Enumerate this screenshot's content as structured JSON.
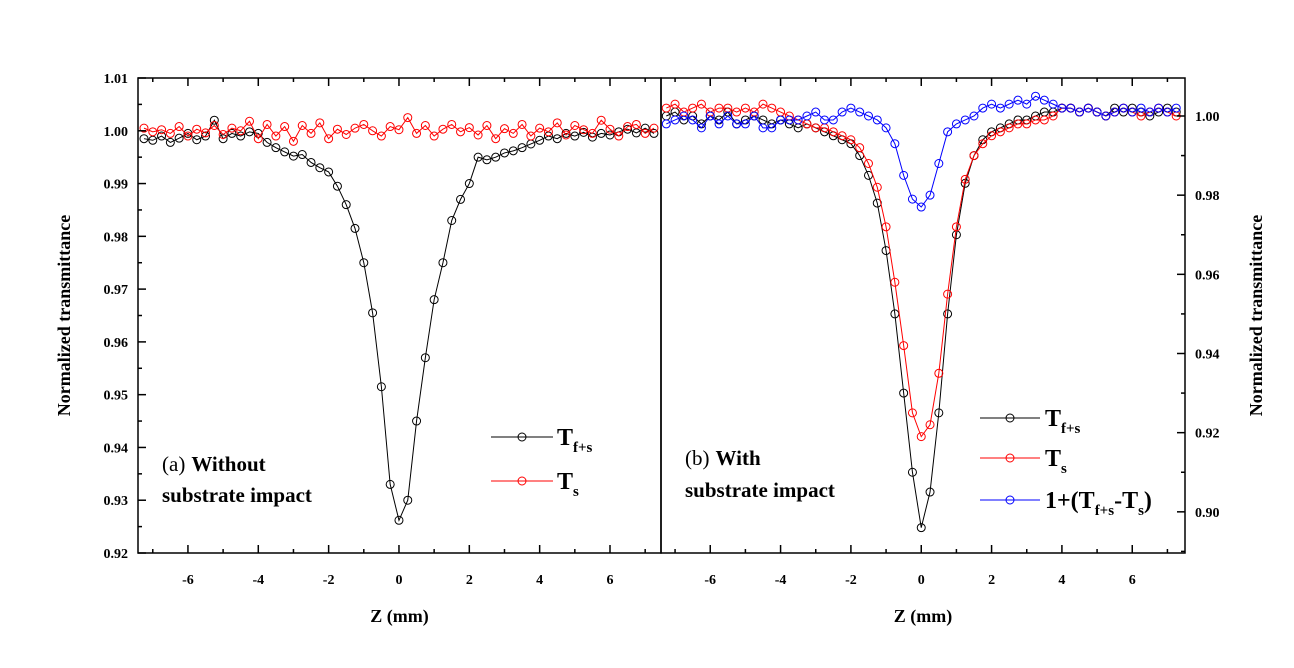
{
  "chart_data": [
    {
      "type": "line",
      "panel": "a",
      "xlabel": "Z (mm)",
      "ylabel": "Normalized transmittance",
      "xlim": [
        -7.42,
        7.45
      ],
      "ylim": [
        0.92,
        1.01
      ],
      "xticks": [
        -6,
        -4,
        -2,
        0,
        2,
        4,
        6
      ],
      "xtick_labels": [
        "-6",
        "-4",
        "-2",
        "0",
        "2",
        "4",
        "6"
      ],
      "yticks": [
        0.92,
        0.93,
        0.94,
        0.95,
        0.96,
        0.97,
        0.98,
        0.99,
        1.0,
        1.01
      ],
      "ytick_labels": [
        "0.92",
        "0.93",
        "0.94",
        "0.95",
        "0.96",
        "0.97",
        "0.98",
        "0.99",
        "1.00",
        "1.01"
      ],
      "y_axis_side": "left",
      "annotation": [
        "(a)",
        "Without",
        "substrate impact"
      ],
      "legend_placement": "lower-right",
      "x_start": -7.25,
      "x_step": 0.25,
      "series": [
        {
          "name": "Tf+s",
          "label_parts": [
            "T",
            "f+s"
          ],
          "color": "#000000",
          "values": [
            0.9985,
            0.9982,
            0.999,
            0.9978,
            0.9986,
            0.9995,
            0.9983,
            0.999,
            1.002,
            0.9985,
            0.9995,
            0.999,
            0.9998,
            0.9995,
            0.9978,
            0.9968,
            0.996,
            0.9952,
            0.9955,
            0.994,
            0.993,
            0.9922,
            0.9895,
            0.986,
            0.9815,
            0.975,
            0.9655,
            0.9515,
            0.933,
            0.9262,
            0.93,
            0.945,
            0.957,
            0.968,
            0.975,
            0.983,
            0.987,
            0.99,
            0.995,
            0.9945,
            0.995,
            0.9958,
            0.9962,
            0.9968,
            0.9975,
            0.9982,
            0.999,
            0.9985,
            0.9995,
            0.999,
            0.9997,
            0.9988,
            0.9995,
            0.9992,
            0.9998,
            1.0003,
            0.9996,
            1.0005,
            0.9995
          ]
        },
        {
          "name": "Ts",
          "label_parts": [
            "T",
            "s"
          ],
          "color": "#ff0000",
          "values": [
            1.0005,
            0.9998,
            1.0002,
            0.9995,
            1.0008,
            0.999,
            1.0003,
            0.9996,
            1.001,
            0.9993,
            1.0005,
            1.0,
            1.0018,
            0.9985,
            1.0012,
            0.999,
            1.0008,
            0.998,
            1.001,
            0.9995,
            1.0015,
            0.9985,
            1.0003,
            0.9993,
            1.0005,
            1.0012,
            1.0,
            0.999,
            1.0008,
            1.0002,
            1.0025,
            0.9995,
            1.001,
            0.999,
            1.0003,
            1.0012,
            0.9998,
            1.0006,
            0.9992,
            1.001,
            0.9985,
            1.0004,
            0.9995,
            1.0012,
            0.999,
            1.0005,
            0.9998,
            1.0015,
            0.9992,
            1.001,
            1.0002,
            0.9995,
            1.002,
            1.0003,
            0.999,
            1.0008,
            1.0012,
            0.9995,
            1.0005
          ]
        }
      ]
    },
    {
      "type": "line",
      "panel": "b",
      "xlabel": "Z (mm)",
      "ylabel": "Normalized transmittance",
      "xlim": [
        -7.4,
        7.5
      ],
      "ylim": [
        0.8896,
        1.0096
      ],
      "xticks": [
        -6,
        -4,
        -2,
        0,
        2,
        4,
        6
      ],
      "xtick_labels": [
        "-6",
        "-4",
        "-2",
        "0",
        "2",
        "4",
        "6"
      ],
      "yticks": [
        0.9,
        0.92,
        0.94,
        0.96,
        0.98,
        1.0
      ],
      "ytick_labels": [
        "0.90",
        "0.92",
        "0.94",
        "0.96",
        "0.98",
        "1.00"
      ],
      "y_axis_side": "right",
      "annotation": [
        "(b)",
        "With",
        "substrate impact"
      ],
      "legend_placement": "lower-right",
      "x_start": -7.25,
      "x_step": 0.25,
      "series": [
        {
          "name": "Tf+s",
          "label_parts": [
            "T",
            "f+s"
          ],
          "color": "#000000",
          "values": [
            1.0,
            1.001,
            0.999,
            1.0,
            0.998,
            1.0,
            0.999,
            1.001,
            0.998,
            0.999,
            1.0,
            0.999,
            0.998,
            0.999,
            0.998,
            0.997,
            0.998,
            0.997,
            0.996,
            0.995,
            0.994,
            0.993,
            0.99,
            0.985,
            0.978,
            0.966,
            0.95,
            0.93,
            0.91,
            0.896,
            0.905,
            0.925,
            0.95,
            0.97,
            0.983,
            0.99,
            0.994,
            0.996,
            0.997,
            0.998,
            0.999,
            0.999,
            1.0,
            1.001,
            1.001,
            1.002,
            1.002,
            1.001,
            1.002,
            1.001,
            1.0,
            1.002,
            1.001,
            1.002,
            1.001,
            1.0,
            1.001,
            1.002,
            1.001
          ]
        },
        {
          "name": "Ts",
          "label_parts": [
            "T",
            "s"
          ],
          "color": "#ff0000",
          "values": [
            1.002,
            1.003,
            1.001,
            1.002,
            1.003,
            1.001,
            1.002,
            1.002,
            1.001,
            1.002,
            1.001,
            1.003,
            1.002,
            1.001,
            1.0,
            0.999,
            0.998,
            0.997,
            0.997,
            0.996,
            0.995,
            0.994,
            0.992,
            0.988,
            0.982,
            0.972,
            0.958,
            0.942,
            0.925,
            0.919,
            0.922,
            0.935,
            0.955,
            0.972,
            0.984,
            0.99,
            0.993,
            0.995,
            0.996,
            0.997,
            0.998,
            0.998,
            0.999,
            0.999,
            1.0,
            1.002,
            1.002,
            1.001,
            1.002,
            1.001,
            1.0,
            1.001,
            1.002,
            1.001,
            1.0,
            1.001,
            1.002,
            1.001,
            1.0
          ]
        },
        {
          "name": "1+(Tf+s-Ts)",
          "label_parts": [
            "1+(T",
            "f+s",
            "-T",
            "s",
            ")"
          ],
          "color": "#0000ff",
          "values": [
            0.998,
            0.999,
            1.0,
            0.999,
            0.997,
            1.0,
            0.998,
            1.0,
            0.998,
            0.998,
            1.0,
            0.997,
            0.997,
            0.999,
            0.999,
            0.999,
            1.0,
            1.001,
            0.999,
            0.999,
            1.001,
            1.002,
            1.001,
            1.0,
            0.999,
            0.997,
            0.993,
            0.985,
            0.979,
            0.977,
            0.98,
            0.988,
            0.996,
            0.998,
            0.999,
            1.0,
            1.002,
            1.003,
            1.002,
            1.003,
            1.004,
            1.003,
            1.005,
            1.004,
            1.003,
            1.002,
            1.002,
            1.001,
            1.002,
            1.001,
            1.0,
            1.001,
            1.002,
            1.001,
            1.002,
            1.001,
            1.002,
            1.001,
            1.002
          ]
        }
      ]
    }
  ]
}
